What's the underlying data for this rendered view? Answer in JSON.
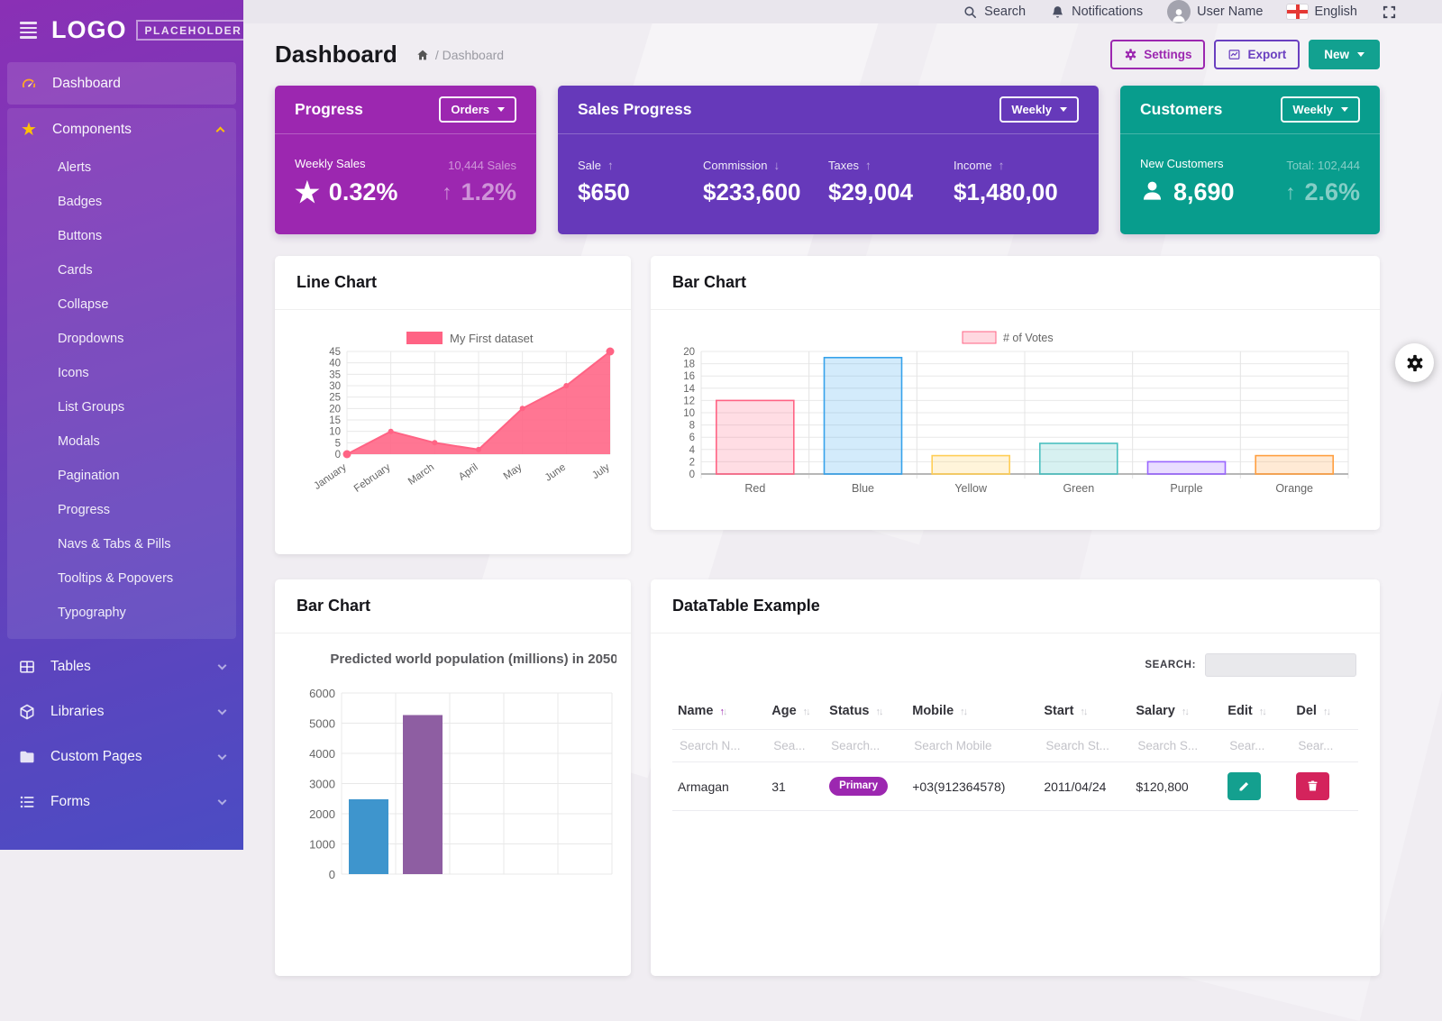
{
  "colors": {
    "sidebar_top": "#8A30B5",
    "sidebar_bottom": "#4B4CC3",
    "magenta": "#9C27B0",
    "purple": "#6639BA",
    "teal": "#089D8D",
    "new_button_teal": "#12A190",
    "pink_series": "#FF6384",
    "edit_button": "#14A08F",
    "delete_button": "#D4235C",
    "sidebar_icon_accent": "#FFC107"
  },
  "sidebar": {
    "logo_text": "LOGO",
    "logo_badge": "PLACEHOLDER",
    "items": [
      {
        "label": "Dashboard",
        "icon": "gauge",
        "active": true,
        "collapsible": false
      },
      {
        "label": "Components",
        "icon": "star",
        "expanded": true,
        "children": [
          "Alerts",
          "Badges",
          "Buttons",
          "Cards",
          "Collapse",
          "Dropdowns",
          "Icons",
          "List Groups",
          "Modals",
          "Pagination",
          "Progress",
          "Navs & Tabs & Pills",
          "Tooltips & Popovers",
          "Typography"
        ]
      },
      {
        "label": "Tables",
        "icon": "table",
        "collapsible": true
      },
      {
        "label": "Libraries",
        "icon": "cube",
        "collapsible": true
      },
      {
        "label": "Custom Pages",
        "icon": "folder",
        "collapsible": true
      },
      {
        "label": "Forms",
        "icon": "list",
        "collapsible": true
      }
    ]
  },
  "topbar": {
    "search": "Search",
    "notifications": "Notifications",
    "user": "User Name",
    "language": "English"
  },
  "page_header": {
    "title": "Dashboard",
    "breadcrumb": "/ Dashboard",
    "buttons": {
      "settings": "Settings",
      "export": "Export",
      "new": "New"
    }
  },
  "stat_cards": {
    "progress": {
      "title": "Progress",
      "period_button": "Orders",
      "metric_label": "Weekly Sales",
      "metric_value": "0.32%",
      "secondary_label": "10,444 Sales",
      "secondary_value": "1.2%"
    },
    "sales": {
      "title": "Sales Progress",
      "period_button": "Weekly",
      "metrics": [
        {
          "label": "Sale",
          "direction": "up",
          "value": "$650"
        },
        {
          "label": "Commission",
          "direction": "down",
          "value": "$233,600"
        },
        {
          "label": "Taxes",
          "direction": "up",
          "value": "$29,004"
        },
        {
          "label": "Income",
          "direction": "up",
          "value": "$1,480,00"
        }
      ]
    },
    "customers": {
      "title": "Customers",
      "period_button": "Weekly",
      "metric_label": "New Customers",
      "metric_value": "8,690",
      "secondary_label": "Total: 102,444",
      "secondary_value": "2.6%"
    }
  },
  "cards": {
    "line_chart_title": "Line Chart",
    "votes_chart_title": "Bar Chart",
    "population_chart_title": "Bar Chart",
    "datatable_title": "DataTable Example"
  },
  "chart_data": [
    {
      "id": "line-chart",
      "type": "line",
      "series_label": "My First dataset",
      "categories": [
        "January",
        "February",
        "March",
        "April",
        "May",
        "June",
        "July"
      ],
      "values": [
        0,
        10,
        5,
        2,
        20,
        30,
        45
      ],
      "color": "#FF6384",
      "ylim": [
        0,
        45
      ],
      "ytick_step": 5,
      "grid": true,
      "legend_position": "top"
    },
    {
      "id": "votes-bar-chart",
      "type": "bar",
      "series_label": "# of Votes",
      "categories": [
        "Red",
        "Blue",
        "Yellow",
        "Green",
        "Purple",
        "Orange"
      ],
      "values": [
        12,
        19,
        3,
        5,
        2,
        3
      ],
      "bar_fills": [
        "rgba(255,99,132,0.22)",
        "rgba(54,162,235,0.22)",
        "rgba(255,206,86,0.22)",
        "rgba(75,192,192,0.22)",
        "rgba(153,102,255,0.22)",
        "rgba(255,159,64,0.22)"
      ],
      "bar_borders": [
        "#FF6384",
        "#36A2EB",
        "#FFCE56",
        "#4BC0C0",
        "#9966FF",
        "#FF9F40"
      ],
      "ylim": [
        0,
        20
      ],
      "ytick_step": 2,
      "grid": true,
      "legend_position": "top"
    },
    {
      "id": "population-bar-chart",
      "type": "bar",
      "title": "Predicted world population (millions) in 2050",
      "categories": [
        "",
        ""
      ],
      "values": [
        2480,
        5270
      ],
      "bar_colors": [
        "#3e95cd",
        "#8e5ea2"
      ],
      "ylim": [
        0,
        6000
      ],
      "ytick_step": 1000,
      "grid": true,
      "column_slots": 5
    }
  ],
  "datatable": {
    "title": "DataTable Example",
    "search_label": "SEARCH:",
    "columns": [
      "Name",
      "Age",
      "Status",
      "Mobile",
      "Start",
      "Salary",
      "Edit",
      "Del"
    ],
    "filters": [
      "Search N...",
      "Sea...",
      "Search...",
      "Search Mobile",
      "Search St...",
      "Search S...",
      "Sear...",
      "Sear..."
    ],
    "sorted": {
      "column": "Name",
      "direction": "asc"
    },
    "rows": [
      {
        "name": "Armagan",
        "age": "31",
        "status": "Primary",
        "mobile": "+03(912364578)",
        "start": "2011/04/24",
        "salary": "$120,800"
      }
    ]
  }
}
